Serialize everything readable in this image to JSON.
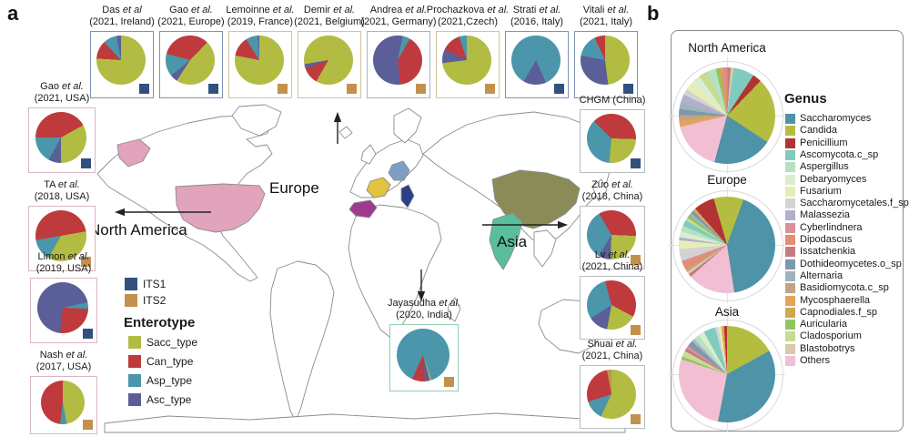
{
  "panel_labels": {
    "a": "a",
    "b": "b"
  },
  "map_labels": {
    "europe": "Europe",
    "north_america": "North America",
    "asia": "Asia"
  },
  "legend": {
    "its_items": [
      {
        "key": "ITS1",
        "label": "ITS1"
      },
      {
        "key": "ITS2",
        "label": "ITS2"
      }
    ],
    "enterotype_title": "Enterotype",
    "enterotype_items": [
      {
        "key": "Sacc_type",
        "label": "Sacc_type"
      },
      {
        "key": "Can_type",
        "label": "Can_type"
      },
      {
        "key": "Asp_type",
        "label": "Asp_type"
      },
      {
        "key": "Asc_type",
        "label": "Asc_type"
      }
    ]
  },
  "panel_b": {
    "genus_title": "Genus",
    "genus_legend": [
      "Saccharomyces",
      "Candida",
      "Penicillium",
      "Ascomycota.c_sp",
      "Aspergillus",
      "Debaryomyces",
      "Fusarium",
      "Saccharomycetales.f_sp",
      "Malassezia",
      "Cyberlindnera",
      "Dipodascus",
      "Issatchenkia",
      "Dothideomycetes.o_sp",
      "Alternaria",
      "Basidiomycota.c_sp",
      "Mycosphaerella",
      "Capnodiales.f_sp",
      "Auricularia",
      "Cladosporium",
      "Blastobotrys",
      "Others"
    ]
  },
  "colors": {
    "its": {
      "ITS1": "#32507e",
      "ITS2": "#c3914e"
    },
    "enterotype": {
      "Sacc_type": "#b2bc42",
      "Can_type": "#bf3a3c",
      "Asp_type": "#4b96aa",
      "Asc_type": "#5b5f97",
      "Other": "#c3914e"
    },
    "countries": {
      "usa": "#e2a3bd",
      "france": "#e3c23e",
      "spain": "#a03a90",
      "germany": "#7e9ec4",
      "italy": "#2b3f87",
      "china": "#8b8b58",
      "india": "#59bf9a"
    },
    "genus": {
      "Saccharomyces": "#4e93a8",
      "Candida": "#b5bd41",
      "Penicillium": "#b23432",
      "Ascomycota.c_sp": "#7fccbe",
      "Aspergillus": "#b7e0c0",
      "Debaryomyces": "#d9eecf",
      "Fusarium": "#e6edb6",
      "Saccharomycetales.f_sp": "#d3d3d3",
      "Malassezia": "#b3aecb",
      "Cyberlindnera": "#d9909a",
      "Dipodascus": "#e58d70",
      "Issatchenkia": "#c57a82",
      "Dothideomycetes.o_sp": "#7b99ab",
      "Alternaria": "#9db4bd",
      "Basidiomycota.c_sp": "#c3a380",
      "Mycosphaerella": "#e3a35a",
      "Capnodiales.f_sp": "#cfa94e",
      "Auricularia": "#93c464",
      "Cladosporium": "#c6dc91",
      "Blastobotrys": "#dbc9a9",
      "Others": "#f2bed3"
    }
  },
  "chart_data": {
    "note": "Panel a: fungal enterotype composition pies per study (percent). Panel b: genus-level composition pies per region (percent).",
    "panel_a_pies": [
      {
        "id": "das",
        "pre": "Das",
        "et": "et al",
        "detail": "(2021, Ireland)",
        "its": "ITS1",
        "start": 0,
        "box_border": "#7d93b5",
        "slices": [
          [
            "Sacc_type",
            76
          ],
          [
            "Can_type",
            12
          ],
          [
            "Asp_type",
            9
          ],
          [
            "Asc_type",
            3
          ]
        ]
      },
      {
        "id": "gao_eu",
        "pre": "Gao",
        "et": "et al.",
        "detail": "(2021, Europe)",
        "its": "ITS1",
        "start": -75,
        "box_border": "#7d93b5",
        "slices": [
          [
            "Can_type",
            33
          ],
          [
            "Sacc_type",
            47
          ],
          [
            "Asc_type",
            5
          ],
          [
            "Asp_type",
            15
          ]
        ]
      },
      {
        "id": "lemoinne",
        "pre": "Lemoinne",
        "et": "et al.",
        "detail": "(2019, France)",
        "its": "ITS2",
        "start": 0,
        "box_border": "#d3c39b",
        "slices": [
          [
            "Sacc_type",
            78
          ],
          [
            "Can_type",
            13
          ],
          [
            "Asp_type",
            8
          ],
          [
            "Asc_type",
            1
          ]
        ]
      },
      {
        "id": "demir",
        "pre": "Demir",
        "et": "et al.",
        "detail": "(2021, Belgium)",
        "its": "ITS2",
        "start": 210,
        "box_border": "#d3c39b",
        "slices": [
          [
            "Can_type",
            11
          ],
          [
            "Asc_type",
            3
          ],
          [
            "Sacc_type",
            86
          ]
        ]
      },
      {
        "id": "andrea",
        "pre": "Andrea",
        "et": "et al.",
        "detail": "(2021, Germany)",
        "its": "ITS2",
        "start": 12,
        "box_border": "#9fb4cc",
        "slices": [
          [
            "Asp_type",
            5
          ],
          [
            "Can_type",
            40
          ],
          [
            "Asc_type",
            55
          ]
        ]
      },
      {
        "id": "prochazkova",
        "pre": "Prochazkova",
        "et": "et al.",
        "detail": "(2021,Czech)",
        "its": "ITS2",
        "start": 0,
        "box_border": "#d3c39b",
        "slices": [
          [
            "Sacc_type",
            73
          ],
          [
            "Asc_type",
            9
          ],
          [
            "Can_type",
            13
          ],
          [
            "Asp_type",
            5
          ]
        ]
      },
      {
        "id": "strati",
        "pre": "Strati",
        "et": "et al.",
        "detail": "(2016, Italy)",
        "its": "ITS1",
        "start": 156,
        "box_border": "#7d93b5",
        "slices": [
          [
            "Asc_type",
            15
          ],
          [
            "Asp_type",
            85
          ]
        ]
      },
      {
        "id": "vitali",
        "pre": "Vitali",
        "et": "et al.",
        "detail": "(2021, Italy)",
        "its": "ITS1",
        "start": 0,
        "box_border": "#7d93b5",
        "slices": [
          [
            "Sacc_type",
            48
          ],
          [
            "Asc_type",
            30
          ],
          [
            "Asp_type",
            15
          ],
          [
            "Can_type",
            7
          ]
        ]
      },
      {
        "id": "gao_usa",
        "pre": "Gao",
        "et": "et al.",
        "detail": "(2021, USA)",
        "its": "ITS1",
        "start": -90,
        "box_border": "#dcb6c6",
        "slices": [
          [
            "Can_type",
            42
          ],
          [
            "Sacc_type",
            33
          ],
          [
            "Asc_type",
            8
          ],
          [
            "Asp_type",
            17
          ]
        ]
      },
      {
        "id": "ta",
        "pre": "TA",
        "et": "et al.",
        "detail": "(2018, USA)",
        "its": "ITS2",
        "start": -100,
        "box_border": "#dcb6c6",
        "slices": [
          [
            "Can_type",
            50
          ],
          [
            "Sacc_type",
            36
          ],
          [
            "Asp_type",
            14
          ]
        ]
      },
      {
        "id": "limon",
        "pre": "Limon",
        "et": "et al.",
        "detail": "(2019, USA)",
        "its": "ITS1",
        "start": 78,
        "box_border": "#dcb6c6",
        "slices": [
          [
            "Asp_type",
            4
          ],
          [
            "Can_type",
            26
          ],
          [
            "Asc_type",
            70
          ]
        ]
      },
      {
        "id": "nash",
        "pre": "Nash",
        "et": "et al.",
        "detail": "(2017, USA)",
        "its": "ITS2",
        "start": 0,
        "box_border": "#dcb6c6",
        "slices": [
          [
            "Sacc_type",
            47
          ],
          [
            "Asp_type",
            5
          ],
          [
            "Can_type",
            48
          ]
        ]
      },
      {
        "id": "chgm",
        "pre": "CHGM (China)",
        "et": "",
        "detail": "",
        "single": true,
        "its": "ITS1",
        "start": -45,
        "box_border": "#b9bcc0",
        "slices": [
          [
            "Can_type",
            38
          ],
          [
            "Sacc_type",
            26
          ],
          [
            "Asp_type",
            36
          ]
        ]
      },
      {
        "id": "zuo",
        "pre": "Zuo",
        "et": "et al.",
        "detail": "(2018, China)",
        "its": "ITS2",
        "start": -30,
        "box_border": "#b9bcc0",
        "slices": [
          [
            "Can_type",
            34
          ],
          [
            "Sacc_type",
            25
          ],
          [
            "Asc_type",
            8
          ],
          [
            "Asp_type",
            33
          ]
        ]
      },
      {
        "id": "lv",
        "pre": "Lv",
        "et": "et al.",
        "detail": "(2021, China)",
        "its": "ITS2",
        "start": -15,
        "box_border": "#b9bcc0",
        "slices": [
          [
            "Can_type",
            37
          ],
          [
            "Sacc_type",
            20
          ],
          [
            "Asc_type",
            13
          ],
          [
            "Asp_type",
            30
          ]
        ]
      },
      {
        "id": "shuai",
        "pre": "Shuai",
        "et": "et al.",
        "detail": "(2021, China)",
        "its": "ITS2",
        "start": 0,
        "box_border": "#b9bcc0",
        "slices": [
          [
            "Sacc_type",
            57
          ],
          [
            "Asp_type",
            13
          ],
          [
            "Can_type",
            27
          ],
          [
            "Other",
            3
          ]
        ]
      },
      {
        "id": "jayasudha",
        "pre": "Jayasudha",
        "et": "et al.",
        "detail": "(2020, India)",
        "its": "ITS2",
        "start": 165,
        "box_border": "#93cdb9",
        "slices": [
          [
            "Asc_type",
            3
          ],
          [
            "Can_type",
            8
          ],
          [
            "Asp_type",
            88
          ],
          [
            "Sacc_type",
            1
          ]
        ]
      }
    ],
    "panel_b_pies": [
      {
        "region": "North America",
        "start": 8,
        "slices": [
          [
            "Ascomycota.c_sp",
            7
          ],
          [
            "Penicillium",
            3
          ],
          [
            "Candida",
            22
          ],
          [
            "Saccharomyces",
            20
          ],
          [
            "Others",
            17
          ],
          [
            "Mycosphaerella",
            2
          ],
          [
            "Basidiomycota.c_sp",
            2
          ],
          [
            "Dothideomycetes.o_sp",
            2
          ],
          [
            "Alternaria",
            2
          ],
          [
            "Malassezia",
            3
          ],
          [
            "Saccharomycetales.f_sp",
            2
          ],
          [
            "Fusarium",
            3
          ],
          [
            "Debaryomyces",
            3
          ],
          [
            "Cladosporium",
            3
          ],
          [
            "Aspergillus",
            3
          ],
          [
            "Auricularia",
            1
          ],
          [
            "Capnodiales.f_sp",
            1
          ],
          [
            "Cyberlindnera",
            1
          ],
          [
            "Dipodascus",
            1
          ],
          [
            "Issatchenkia",
            1
          ],
          [
            "Blastobotrys",
            1
          ]
        ]
      },
      {
        "region": "Europe",
        "start": 20,
        "slices": [
          [
            "Saccharomyces",
            42
          ],
          [
            "Others",
            16
          ],
          [
            "Issatchenkia",
            1
          ],
          [
            "Blastobotrys",
            1
          ],
          [
            "Basidiomycota.c_sp",
            1
          ],
          [
            "Dipodascus",
            2
          ],
          [
            "Cyberlindnera",
            1
          ],
          [
            "Saccharomycetales.f_sp",
            4
          ],
          [
            "Fusarium",
            3
          ],
          [
            "Malassezia",
            1
          ],
          [
            "Debaryomyces",
            2
          ],
          [
            "Aspergillus",
            2
          ],
          [
            "Ascomycota.c_sp",
            2
          ],
          [
            "Cladosporium",
            1
          ],
          [
            "Auricularia",
            1
          ],
          [
            "Alternaria",
            1
          ],
          [
            "Dothideomycetes.o_sp",
            1
          ],
          [
            "Mycosphaerella",
            1
          ],
          [
            "Penicillium",
            7
          ],
          [
            "Candida",
            10
          ]
        ]
      },
      {
        "region": "Asia",
        "start": 0,
        "slices": [
          [
            "Candida",
            17
          ],
          [
            "Saccharomyces",
            36
          ],
          [
            "Others",
            27
          ],
          [
            "Auricularia",
            1
          ],
          [
            "Cladosporium",
            2
          ],
          [
            "Issatchenkia",
            1
          ],
          [
            "Cyberlindnera",
            1
          ],
          [
            "Dothideomycetes.o_sp",
            2
          ],
          [
            "Malassezia",
            1
          ],
          [
            "Aspergillus",
            2
          ],
          [
            "Debaryomyces",
            2
          ],
          [
            "Ascomycota.c_sp",
            4
          ],
          [
            "Saccharomycetales.f_sp",
            1
          ],
          [
            "Fusarium",
            1
          ],
          [
            "Mycosphaerella",
            1
          ],
          [
            "Penicillium",
            1
          ]
        ]
      }
    ]
  }
}
